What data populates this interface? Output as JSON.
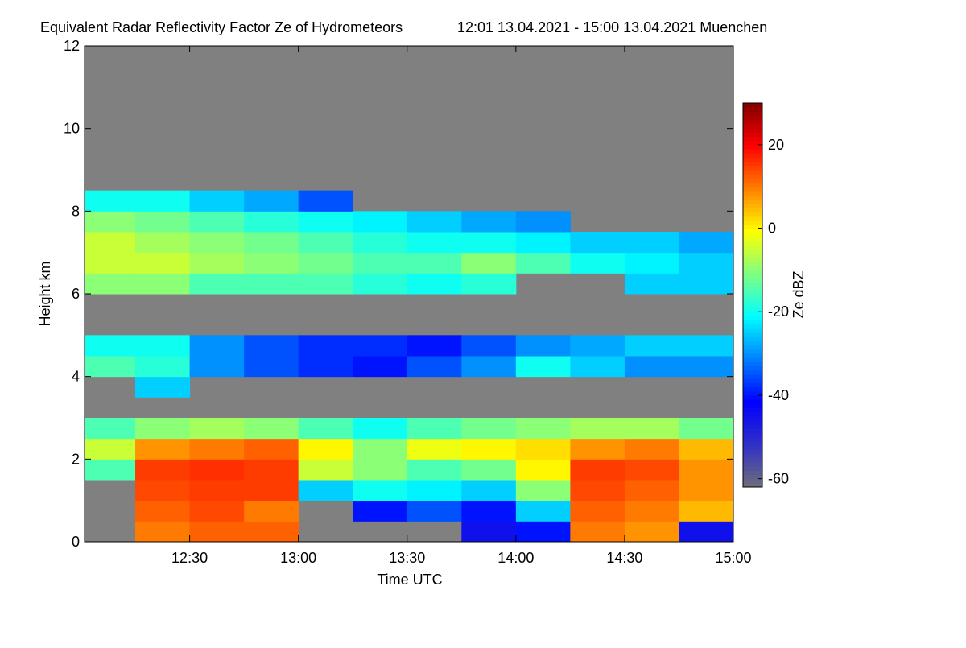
{
  "chart_data": {
    "type": "heatmap",
    "title": "Equivalent Radar Reflectivity Factor Ze of Hydrometeors",
    "subtitle": "12:01 13.04.2021 - 15:00 13.04.2021 Muenchen",
    "x_label": "Time UTC",
    "y_label": "Height km",
    "colorbar_label": "Ze dBZ",
    "x_bins": [
      721,
      735,
      750,
      765,
      780,
      795,
      810,
      825,
      840,
      855,
      870,
      885,
      900
    ],
    "y_bins": [
      0,
      0.5,
      1,
      1.5,
      2,
      2.5,
      3,
      3.5,
      4,
      4.5,
      5,
      5.5,
      6,
      6.5,
      7,
      7.5,
      8,
      8.5,
      9,
      9.5,
      10,
      10.5,
      11,
      11.5,
      12
    ],
    "z": [
      [
        null,
        10,
        12,
        12,
        null,
        null,
        null,
        -45,
        -40,
        10,
        8,
        -45
      ],
      [
        null,
        12,
        14,
        10,
        null,
        -40,
        -35,
        -40,
        -25,
        12,
        10,
        5
      ],
      [
        null,
        14,
        15,
        15,
        -25,
        -20,
        -22,
        -25,
        -10,
        14,
        12,
        8
      ],
      [
        -15,
        15,
        16,
        15,
        -5,
        -10,
        -15,
        -12,
        0,
        15,
        14,
        8
      ],
      [
        -5,
        8,
        10,
        12,
        0,
        -10,
        -2,
        0,
        2,
        8,
        10,
        5
      ],
      [
        -15,
        -10,
        -8,
        -10,
        -15,
        -20,
        -15,
        -12,
        -10,
        -8,
        -8,
        -12
      ],
      [
        null,
        null,
        null,
        null,
        null,
        null,
        null,
        null,
        null,
        null,
        null,
        null
      ],
      [
        null,
        -25,
        null,
        null,
        null,
        null,
        null,
        null,
        null,
        null,
        null,
        null
      ],
      [
        -15,
        -18,
        -30,
        -35,
        -38,
        -40,
        -35,
        -30,
        -20,
        -25,
        -30,
        -30
      ],
      [
        -20,
        -20,
        -30,
        -35,
        -38,
        -38,
        -40,
        -35,
        -30,
        -28,
        -25,
        -25
      ],
      [
        null,
        null,
        null,
        null,
        null,
        null,
        null,
        null,
        null,
        null,
        null,
        null
      ],
      [
        null,
        null,
        null,
        null,
        null,
        null,
        null,
        null,
        null,
        null,
        null,
        null
      ],
      [
        -10,
        -10,
        -15,
        -15,
        -15,
        -18,
        -20,
        -18,
        null,
        null,
        -25,
        -25
      ],
      [
        -5,
        -5,
        -8,
        -10,
        -12,
        -15,
        -15,
        -10,
        -15,
        -20,
        -22,
        -25
      ],
      [
        -5,
        -8,
        -10,
        -12,
        -15,
        -18,
        -20,
        -20,
        -22,
        -25,
        -25,
        -28
      ],
      [
        -10,
        -12,
        -15,
        -18,
        -20,
        -22,
        -25,
        -28,
        -30,
        null,
        null,
        null
      ],
      [
        -20,
        -20,
        -25,
        -28,
        -35,
        null,
        null,
        null,
        null,
        null,
        null,
        null
      ],
      [
        null,
        null,
        null,
        null,
        null,
        null,
        null,
        null,
        null,
        null,
        null,
        null
      ],
      [
        null,
        null,
        null,
        null,
        null,
        null,
        null,
        null,
        null,
        null,
        null,
        null
      ],
      [
        null,
        null,
        null,
        null,
        null,
        null,
        null,
        null,
        null,
        null,
        null,
        null
      ],
      [
        null,
        null,
        null,
        null,
        null,
        null,
        null,
        null,
        null,
        null,
        null,
        null
      ],
      [
        null,
        null,
        null,
        null,
        null,
        null,
        null,
        null,
        null,
        null,
        null,
        null
      ],
      [
        null,
        null,
        null,
        null,
        null,
        null,
        null,
        null,
        null,
        null,
        null,
        null
      ],
      [
        null,
        null,
        null,
        null,
        null,
        null,
        null,
        null,
        null,
        null,
        null,
        null
      ]
    ],
    "xlim": [
      721,
      900
    ],
    "ylim": [
      0,
      12
    ],
    "clim": [
      -62,
      30
    ],
    "xticks": [
      {
        "value": 750,
        "label": "12:30"
      },
      {
        "value": 780,
        "label": "13:00"
      },
      {
        "value": 810,
        "label": "13:30"
      },
      {
        "value": 840,
        "label": "14:00"
      },
      {
        "value": 870,
        "label": "14:30"
      },
      {
        "value": 900,
        "label": "15:00"
      }
    ],
    "yticks": [
      0,
      2,
      4,
      6,
      8,
      10,
      12
    ],
    "cticks": [
      -60,
      -40,
      -20,
      0,
      20
    ],
    "colormap": [
      "#6e6e78",
      "#3030c8",
      "#0000ff",
      "#0080ff",
      "#00ffff",
      "#80ff80",
      "#ffff00",
      "#ff8000",
      "#ff0000",
      "#800000"
    ],
    "missing_color": "#808080"
  }
}
